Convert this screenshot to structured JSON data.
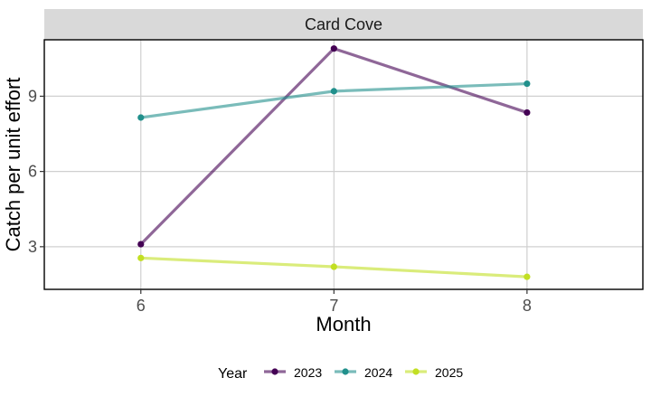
{
  "chart_data": {
    "type": "line",
    "facet_title": "Card Cove",
    "xlabel": "Month",
    "ylabel": "Catch per unit effort",
    "x_ticks": [
      6,
      7,
      8
    ],
    "y_ticks": [
      3,
      6,
      9
    ],
    "xlim": [
      5.5,
      8.6
    ],
    "ylim": [
      1.3,
      11.25
    ],
    "grid": true,
    "legend_title": "Year",
    "legend_position": "bottom",
    "series": [
      {
        "name": "2023",
        "color": "#440154",
        "x": [
          6,
          7,
          8
        ],
        "y": [
          3.1,
          10.9,
          8.35
        ]
      },
      {
        "name": "2024",
        "color": "#21908C",
        "x": [
          6,
          7,
          8
        ],
        "y": [
          8.15,
          9.2,
          9.5
        ]
      },
      {
        "name": "2025",
        "color": "#C2DF23",
        "x": [
          6,
          7,
          8
        ],
        "y": [
          2.55,
          2.2,
          1.8
        ]
      }
    ]
  }
}
